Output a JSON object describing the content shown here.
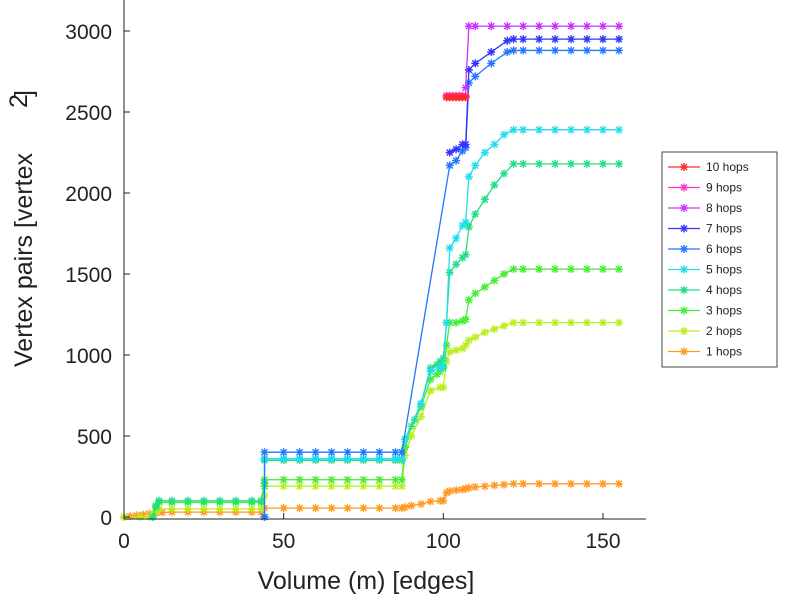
{
  "chart_data": {
    "type": "line",
    "xlabel": "Volume (m) [edges]",
    "ylabel": "Vertex pairs [vertex",
    "ylabel_superscript": "2",
    "ylabel_close": "]",
    "xlim": [
      0,
      163
    ],
    "ylim": [
      0,
      3100
    ],
    "xticks": [
      0,
      50,
      100,
      150
    ],
    "yticks": [
      0,
      500,
      1000,
      1500,
      2000,
      2500,
      3000
    ],
    "grid": false,
    "legend_position": "right",
    "series": [
      {
        "name": "10 hops",
        "color": "#ff2b2b",
        "points": [
          [
            101,
            2590
          ],
          [
            102,
            2590
          ],
          [
            103,
            2590
          ],
          [
            104,
            2590
          ],
          [
            105,
            2590
          ],
          [
            106,
            2590
          ],
          [
            107,
            2590
          ]
        ]
      },
      {
        "name": "9 hops",
        "color": "#ff33cc",
        "points": [
          [
            101,
            2600
          ],
          [
            102,
            2600
          ],
          [
            103,
            2600
          ],
          [
            104,
            2600
          ],
          [
            105,
            2600
          ],
          [
            106,
            2600
          ],
          [
            107,
            2600
          ]
        ]
      },
      {
        "name": "8 hops",
        "color": "#cc33ff",
        "points": [
          [
            107,
            2650
          ],
          [
            108,
            3030
          ],
          [
            110,
            3030
          ],
          [
            115,
            3030
          ],
          [
            120,
            3030
          ],
          [
            125,
            3030
          ],
          [
            130,
            3030
          ],
          [
            135,
            3030
          ],
          [
            140,
            3030
          ],
          [
            145,
            3030
          ],
          [
            150,
            3030
          ],
          [
            155,
            3030
          ]
        ]
      },
      {
        "name": "7 hops",
        "color": "#3333ff",
        "points": [
          [
            102,
            2250
          ],
          [
            104,
            2270
          ],
          [
            106,
            2300
          ],
          [
            107,
            2300
          ],
          [
            108,
            2760
          ],
          [
            110,
            2800
          ],
          [
            115,
            2870
          ],
          [
            120,
            2940
          ],
          [
            122,
            2950
          ],
          [
            125,
            2950
          ],
          [
            130,
            2950
          ],
          [
            135,
            2950
          ],
          [
            140,
            2950
          ],
          [
            145,
            2950
          ],
          [
            150,
            2950
          ],
          [
            155,
            2950
          ]
        ]
      },
      {
        "name": "6 hops",
        "color": "#2277ff",
        "points": [
          [
            44,
            0
          ],
          [
            44,
            400
          ],
          [
            50,
            400
          ],
          [
            55,
            400
          ],
          [
            60,
            400
          ],
          [
            65,
            400
          ],
          [
            70,
            400
          ],
          [
            75,
            400
          ],
          [
            80,
            400
          ],
          [
            85,
            400
          ],
          [
            87,
            400
          ],
          [
            102,
            2170
          ],
          [
            104,
            2200
          ],
          [
            106,
            2260
          ],
          [
            107,
            2280
          ],
          [
            108,
            2680
          ],
          [
            110,
            2720
          ],
          [
            115,
            2800
          ],
          [
            120,
            2870
          ],
          [
            122,
            2880
          ],
          [
            125,
            2880
          ],
          [
            130,
            2880
          ],
          [
            135,
            2880
          ],
          [
            140,
            2880
          ],
          [
            145,
            2880
          ],
          [
            150,
            2880
          ],
          [
            155,
            2880
          ]
        ]
      },
      {
        "name": "5 hops",
        "color": "#22ddee",
        "points": [
          [
            44,
            0
          ],
          [
            44,
            360
          ],
          [
            50,
            360
          ],
          [
            55,
            360
          ],
          [
            60,
            360
          ],
          [
            65,
            360
          ],
          [
            70,
            360
          ],
          [
            75,
            360
          ],
          [
            80,
            360
          ],
          [
            85,
            360
          ],
          [
            87,
            360
          ],
          [
            88,
            480
          ],
          [
            93,
            700
          ],
          [
            96,
            900
          ],
          [
            99,
            920
          ],
          [
            100,
            930
          ],
          [
            101,
            1200
          ],
          [
            102,
            1660
          ],
          [
            104,
            1720
          ],
          [
            106,
            1800
          ],
          [
            107,
            1820
          ],
          [
            108,
            2100
          ],
          [
            110,
            2170
          ],
          [
            113,
            2250
          ],
          [
            116,
            2300
          ],
          [
            119,
            2360
          ],
          [
            122,
            2390
          ],
          [
            125,
            2390
          ],
          [
            130,
            2390
          ],
          [
            135,
            2390
          ],
          [
            140,
            2390
          ],
          [
            145,
            2390
          ],
          [
            150,
            2390
          ],
          [
            155,
            2390
          ]
        ]
      },
      {
        "name": "4 hops",
        "color": "#22dd88",
        "points": [
          [
            9,
            0
          ],
          [
            10,
            70
          ],
          [
            11,
            100
          ],
          [
            15,
            100
          ],
          [
            20,
            100
          ],
          [
            25,
            100
          ],
          [
            30,
            100
          ],
          [
            35,
            100
          ],
          [
            40,
            100
          ],
          [
            43,
            100
          ],
          [
            44,
            210
          ],
          [
            44,
            350
          ],
          [
            50,
            350
          ],
          [
            55,
            350
          ],
          [
            60,
            350
          ],
          [
            65,
            350
          ],
          [
            70,
            350
          ],
          [
            75,
            350
          ],
          [
            80,
            350
          ],
          [
            85,
            350
          ],
          [
            87,
            350
          ],
          [
            88,
            480
          ],
          [
            91,
            600
          ],
          [
            93,
            700
          ],
          [
            96,
            920
          ],
          [
            98,
            940
          ],
          [
            99,
            960
          ],
          [
            100,
            980
          ],
          [
            101,
            1200
          ],
          [
            102,
            1510
          ],
          [
            104,
            1560
          ],
          [
            106,
            1600
          ],
          [
            107,
            1620
          ],
          [
            108,
            1790
          ],
          [
            110,
            1870
          ],
          [
            113,
            1960
          ],
          [
            116,
            2050
          ],
          [
            119,
            2120
          ],
          [
            122,
            2180
          ],
          [
            125,
            2180
          ],
          [
            130,
            2180
          ],
          [
            135,
            2180
          ],
          [
            140,
            2180
          ],
          [
            145,
            2180
          ],
          [
            150,
            2180
          ],
          [
            155,
            2180
          ]
        ]
      },
      {
        "name": "3 hops",
        "color": "#44ee33",
        "points": [
          [
            9,
            0
          ],
          [
            10,
            60
          ],
          [
            11,
            90
          ],
          [
            15,
            90
          ],
          [
            20,
            90
          ],
          [
            25,
            90
          ],
          [
            30,
            90
          ],
          [
            35,
            90
          ],
          [
            40,
            90
          ],
          [
            43,
            90
          ],
          [
            44,
            190
          ],
          [
            44,
            230
          ],
          [
            50,
            230
          ],
          [
            55,
            230
          ],
          [
            60,
            230
          ],
          [
            65,
            230
          ],
          [
            70,
            230
          ],
          [
            75,
            230
          ],
          [
            80,
            230
          ],
          [
            85,
            230
          ],
          [
            87,
            230
          ],
          [
            88,
            430
          ],
          [
            90,
            560
          ],
          [
            93,
            680
          ],
          [
            96,
            850
          ],
          [
            98,
            880
          ],
          [
            99,
            900
          ],
          [
            100,
            920
          ],
          [
            101,
            1060
          ],
          [
            102,
            1200
          ],
          [
            104,
            1200
          ],
          [
            106,
            1210
          ],
          [
            107,
            1220
          ],
          [
            108,
            1340
          ],
          [
            110,
            1380
          ],
          [
            113,
            1420
          ],
          [
            116,
            1460
          ],
          [
            119,
            1500
          ],
          [
            122,
            1530
          ],
          [
            125,
            1530
          ],
          [
            130,
            1530
          ],
          [
            135,
            1530
          ],
          [
            140,
            1530
          ],
          [
            145,
            1530
          ],
          [
            150,
            1530
          ],
          [
            155,
            1530
          ]
        ]
      },
      {
        "name": "2 hops",
        "color": "#bbee22",
        "points": [
          [
            0,
            0
          ],
          [
            5,
            0
          ],
          [
            8,
            0
          ],
          [
            9,
            20
          ],
          [
            10,
            40
          ],
          [
            11,
            50
          ],
          [
            15,
            50
          ],
          [
            20,
            50
          ],
          [
            25,
            50
          ],
          [
            30,
            50
          ],
          [
            35,
            50
          ],
          [
            40,
            50
          ],
          [
            43,
            50
          ],
          [
            44,
            130
          ],
          [
            44,
            190
          ],
          [
            50,
            190
          ],
          [
            55,
            190
          ],
          [
            60,
            190
          ],
          [
            65,
            190
          ],
          [
            70,
            190
          ],
          [
            75,
            190
          ],
          [
            80,
            190
          ],
          [
            85,
            190
          ],
          [
            87,
            190
          ],
          [
            88,
            380
          ],
          [
            90,
            500
          ],
          [
            93,
            620
          ],
          [
            96,
            780
          ],
          [
            99,
            800
          ],
          [
            100,
            800
          ],
          [
            101,
            960
          ],
          [
            102,
            1020
          ],
          [
            104,
            1030
          ],
          [
            106,
            1040
          ],
          [
            107,
            1060
          ],
          [
            108,
            1090
          ],
          [
            110,
            1110
          ],
          [
            113,
            1140
          ],
          [
            116,
            1160
          ],
          [
            119,
            1180
          ],
          [
            122,
            1200
          ],
          [
            125,
            1200
          ],
          [
            130,
            1200
          ],
          [
            135,
            1200
          ],
          [
            140,
            1200
          ],
          [
            145,
            1200
          ],
          [
            150,
            1200
          ],
          [
            155,
            1200
          ]
        ]
      },
      {
        "name": "1 hops",
        "color": "#ff9922",
        "points": [
          [
            0,
            0
          ],
          [
            2,
            5
          ],
          [
            4,
            10
          ],
          [
            6,
            15
          ],
          [
            8,
            20
          ],
          [
            10,
            25
          ],
          [
            12,
            28
          ],
          [
            15,
            30
          ],
          [
            20,
            30
          ],
          [
            25,
            30
          ],
          [
            30,
            30
          ],
          [
            35,
            30
          ],
          [
            40,
            30
          ],
          [
            43,
            30
          ],
          [
            44,
            55
          ],
          [
            50,
            55
          ],
          [
            55,
            55
          ],
          [
            60,
            55
          ],
          [
            65,
            55
          ],
          [
            70,
            55
          ],
          [
            75,
            55
          ],
          [
            80,
            55
          ],
          [
            85,
            55
          ],
          [
            87,
            55
          ],
          [
            88,
            60
          ],
          [
            90,
            70
          ],
          [
            93,
            80
          ],
          [
            96,
            95
          ],
          [
            99,
            100
          ],
          [
            100,
            100
          ],
          [
            101,
            150
          ],
          [
            102,
            160
          ],
          [
            104,
            165
          ],
          [
            106,
            170
          ],
          [
            107,
            175
          ],
          [
            108,
            180
          ],
          [
            110,
            185
          ],
          [
            113,
            190
          ],
          [
            116,
            195
          ],
          [
            119,
            200
          ],
          [
            122,
            205
          ],
          [
            125,
            205
          ],
          [
            130,
            205
          ],
          [
            135,
            205
          ],
          [
            140,
            205
          ],
          [
            145,
            205
          ],
          [
            150,
            205
          ],
          [
            155,
            205
          ]
        ]
      }
    ],
    "legend_order": [
      "10 hops",
      "9 hops",
      "8 hops",
      "7 hops",
      "6 hops",
      "5 hops",
      "4 hops",
      "3 hops",
      "2 hops",
      "1 hops"
    ]
  }
}
